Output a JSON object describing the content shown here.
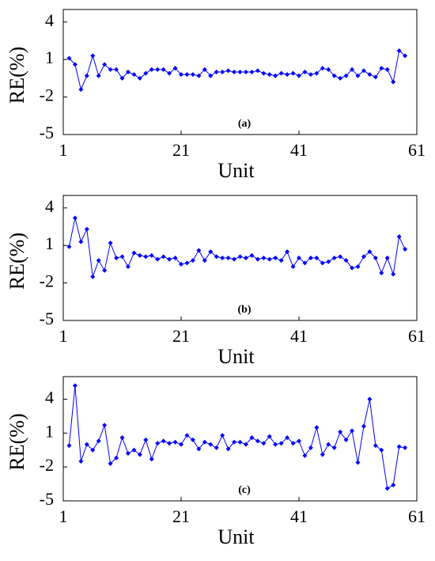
{
  "chart_data": [
    {
      "type": "line",
      "annotation": "(a)",
      "x_label": "Unit",
      "y_label": "RE(%)",
      "x": [
        2,
        3,
        4,
        5,
        6,
        7,
        8,
        9,
        10,
        11,
        12,
        13,
        14,
        15,
        16,
        17,
        18,
        19,
        20,
        21,
        22,
        23,
        24,
        25,
        26,
        27,
        28,
        29,
        30,
        31,
        32,
        33,
        34,
        35,
        36,
        37,
        38,
        39,
        40,
        41,
        42,
        43,
        44,
        45,
        46,
        47,
        48,
        49,
        50,
        51,
        52,
        53,
        54,
        55,
        56,
        57,
        58,
        59
      ],
      "series": [
        {
          "name": "RE",
          "color": "#0000ff",
          "values": [
            1.1,
            0.6,
            -1.4,
            -0.3,
            1.3,
            -0.3,
            0.6,
            0.2,
            0.2,
            -0.5,
            0.0,
            -0.2,
            -0.5,
            -0.1,
            0.2,
            0.2,
            0.2,
            -0.1,
            0.3,
            -0.2,
            -0.2,
            -0.2,
            -0.3,
            0.2,
            -0.3,
            0.0,
            0.0,
            0.1,
            0.0,
            0.0,
            0.0,
            0.0,
            0.1,
            -0.1,
            -0.2,
            -0.3,
            -0.1,
            -0.2,
            -0.1,
            -0.3,
            0.0,
            -0.2,
            -0.1,
            0.3,
            0.2,
            -0.3,
            -0.5,
            -0.3,
            0.2,
            -0.3,
            0.1,
            -0.2,
            -0.4,
            0.3,
            0.2,
            -0.8,
            1.7,
            1.3
          ]
        }
      ],
      "xlim": [
        1,
        61
      ],
      "xticks": [
        1,
        21,
        41,
        61
      ],
      "ylim": [
        -5,
        5
      ],
      "yticks": [
        -5,
        -2,
        1,
        4
      ]
    },
    {
      "type": "line",
      "annotation": "(b)",
      "x_label": "Unit",
      "y_label": "RE(%)",
      "x": [
        2,
        3,
        4,
        5,
        6,
        7,
        8,
        9,
        10,
        11,
        12,
        13,
        14,
        15,
        16,
        17,
        18,
        19,
        20,
        21,
        22,
        23,
        24,
        25,
        26,
        27,
        28,
        29,
        30,
        31,
        32,
        33,
        34,
        35,
        36,
        37,
        38,
        39,
        40,
        41,
        42,
        43,
        44,
        45,
        46,
        47,
        48,
        49,
        50,
        51,
        52,
        53,
        54,
        55,
        56,
        57,
        58,
        59
      ],
      "series": [
        {
          "name": "RE",
          "color": "#0000ff",
          "values": [
            0.9,
            3.2,
            1.3,
            2.3,
            -1.5,
            -0.2,
            -1.0,
            1.2,
            0.0,
            0.1,
            -0.7,
            0.4,
            0.2,
            0.1,
            0.2,
            -0.1,
            0.1,
            -0.1,
            0.0,
            -0.5,
            -0.4,
            -0.2,
            0.6,
            -0.2,
            0.5,
            0.1,
            0.0,
            0.0,
            -0.1,
            0.1,
            0.0,
            0.2,
            -0.1,
            0.0,
            -0.1,
            0.0,
            -0.2,
            0.5,
            -0.7,
            0.0,
            -0.4,
            0.0,
            0.0,
            -0.4,
            -0.3,
            0.0,
            0.1,
            -0.2,
            -0.8,
            -0.7,
            0.1,
            0.5,
            0.0,
            -1.2,
            0.0,
            -1.3,
            1.7,
            0.7
          ]
        }
      ],
      "xlim": [
        1,
        61
      ],
      "xticks": [
        1,
        21,
        41,
        61
      ],
      "ylim": [
        -5,
        5
      ],
      "yticks": [
        -5,
        -2,
        1,
        4
      ]
    },
    {
      "type": "line",
      "annotation": "(c)",
      "x_label": "Unit",
      "y_label": "RE(%)",
      "x": [
        2,
        3,
        4,
        5,
        6,
        7,
        8,
        9,
        10,
        11,
        12,
        13,
        14,
        15,
        16,
        17,
        18,
        19,
        20,
        21,
        22,
        23,
        24,
        25,
        26,
        27,
        28,
        29,
        30,
        31,
        32,
        33,
        34,
        35,
        36,
        37,
        38,
        39,
        40,
        41,
        42,
        43,
        44,
        45,
        46,
        47,
        48,
        49,
        50,
        51,
        52,
        53,
        54,
        55,
        56,
        57,
        58,
        59
      ],
      "series": [
        {
          "name": "RE",
          "color": "#0000ff",
          "values": [
            -0.1,
            5.2,
            -1.5,
            0.0,
            -0.5,
            0.3,
            1.7,
            -1.7,
            -1.2,
            0.6,
            -0.8,
            -0.5,
            -0.9,
            0.4,
            -1.3,
            0.1,
            0.3,
            0.1,
            0.2,
            0.0,
            0.8,
            0.4,
            -0.4,
            0.2,
            0.0,
            -0.3,
            0.8,
            -0.4,
            0.2,
            0.2,
            0.0,
            0.6,
            0.3,
            0.1,
            0.7,
            0.0,
            0.1,
            0.6,
            0.1,
            0.3,
            -1.0,
            -0.3,
            1.5,
            -0.9,
            0.0,
            -0.3,
            1.1,
            0.4,
            1.2,
            -1.6,
            1.6,
            4.0,
            -0.1,
            -0.5,
            -3.9,
            -3.6,
            -0.2,
            -0.3
          ]
        }
      ],
      "xlim": [
        1,
        61
      ],
      "xticks": [
        1,
        21,
        41,
        61
      ],
      "ylim": [
        -5,
        6
      ],
      "yticks": [
        -5,
        -2,
        1,
        4
      ]
    }
  ]
}
